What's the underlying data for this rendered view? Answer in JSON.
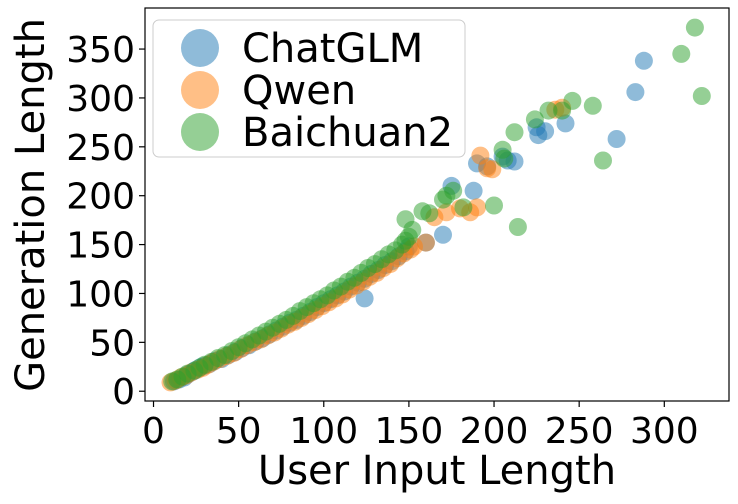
{
  "chart_data": {
    "type": "scatter",
    "xlabel": "User Input Length",
    "ylabel": "Generation Length",
    "xlim": [
      -5,
      338
    ],
    "ylim": [
      -10,
      392
    ],
    "xticks": [
      0,
      50,
      100,
      150,
      200,
      250,
      300
    ],
    "yticks": [
      0,
      50,
      100,
      150,
      200,
      250,
      300,
      350
    ],
    "legend_position": "top-left",
    "grid": false,
    "series": [
      {
        "name": "ChatGLM",
        "color": "#1f77b4",
        "points": [
          [
            12,
            10
          ],
          [
            15,
            12
          ],
          [
            18,
            14
          ],
          [
            20,
            17
          ],
          [
            23,
            20
          ],
          [
            25,
            22
          ],
          [
            28,
            25
          ],
          [
            30,
            26
          ],
          [
            33,
            28
          ],
          [
            36,
            31
          ],
          [
            40,
            33
          ],
          [
            44,
            37
          ],
          [
            48,
            40
          ],
          [
            52,
            44
          ],
          [
            56,
            47
          ],
          [
            60,
            51
          ],
          [
            64,
            54
          ],
          [
            68,
            58
          ],
          [
            72,
            62
          ],
          [
            76,
            66
          ],
          [
            80,
            70
          ],
          [
            84,
            73
          ],
          [
            88,
            77
          ],
          [
            92,
            81
          ],
          [
            96,
            86
          ],
          [
            100,
            90
          ],
          [
            104,
            94
          ],
          [
            108,
            98
          ],
          [
            112,
            102
          ],
          [
            116,
            107
          ],
          [
            120,
            111
          ],
          [
            124,
            115
          ],
          [
            128,
            120
          ],
          [
            132,
            124
          ],
          [
            136,
            129
          ],
          [
            140,
            133
          ],
          [
            144,
            138
          ],
          [
            148,
            143
          ],
          [
            124,
            95
          ],
          [
            150,
            148
          ],
          [
            160,
            152
          ],
          [
            170,
            160
          ],
          [
            175,
            210
          ],
          [
            188,
            205
          ],
          [
            190,
            233
          ],
          [
            196,
            230
          ],
          [
            205,
            240
          ],
          [
            208,
            236
          ],
          [
            212,
            235
          ],
          [
            225,
            270
          ],
          [
            226,
            262
          ],
          [
            230,
            266
          ],
          [
            242,
            274
          ],
          [
            272,
            258
          ],
          [
            283,
            306
          ],
          [
            288,
            338
          ]
        ]
      },
      {
        "name": "Qwen",
        "color": "#ff7f0e",
        "points": [
          [
            10,
            9
          ],
          [
            13,
            11
          ],
          [
            16,
            14
          ],
          [
            19,
            16
          ],
          [
            22,
            19
          ],
          [
            26,
            22
          ],
          [
            29,
            24
          ],
          [
            32,
            27
          ],
          [
            35,
            30
          ],
          [
            39,
            33
          ],
          [
            43,
            36
          ],
          [
            47,
            39
          ],
          [
            51,
            43
          ],
          [
            55,
            47
          ],
          [
            59,
            50
          ],
          [
            63,
            53
          ],
          [
            67,
            57
          ],
          [
            71,
            60
          ],
          [
            75,
            64
          ],
          [
            79,
            68
          ],
          [
            83,
            71
          ],
          [
            87,
            75
          ],
          [
            91,
            79
          ],
          [
            95,
            83
          ],
          [
            99,
            87
          ],
          [
            103,
            91
          ],
          [
            107,
            95
          ],
          [
            111,
            99
          ],
          [
            115,
            104
          ],
          [
            119,
            108
          ],
          [
            123,
            112
          ],
          [
            127,
            117
          ],
          [
            131,
            121
          ],
          [
            135,
            126
          ],
          [
            139,
            130
          ],
          [
            143,
            136
          ],
          [
            147,
            141
          ],
          [
            151,
            145
          ],
          [
            153,
            148
          ],
          [
            160,
            152
          ],
          [
            165,
            178
          ],
          [
            172,
            183
          ],
          [
            180,
            187
          ],
          [
            186,
            183
          ],
          [
            190,
            188
          ],
          [
            192,
            241
          ],
          [
            196,
            228
          ],
          [
            199,
            227
          ],
          [
            236,
            288
          ],
          [
            240,
            290
          ]
        ]
      },
      {
        "name": "Baichuan2",
        "color": "#2ca02c",
        "points": [
          [
            11,
            10
          ],
          [
            14,
            12
          ],
          [
            17,
            15
          ],
          [
            20,
            18
          ],
          [
            24,
            21
          ],
          [
            27,
            24
          ],
          [
            30,
            27
          ],
          [
            34,
            30
          ],
          [
            38,
            34
          ],
          [
            42,
            37
          ],
          [
            46,
            41
          ],
          [
            50,
            45
          ],
          [
            54,
            49
          ],
          [
            58,
            53
          ],
          [
            62,
            57
          ],
          [
            66,
            61
          ],
          [
            70,
            65
          ],
          [
            74,
            69
          ],
          [
            78,
            73
          ],
          [
            82,
            77
          ],
          [
            86,
            82
          ],
          [
            90,
            86
          ],
          [
            94,
            90
          ],
          [
            98,
            94
          ],
          [
            102,
            98
          ],
          [
            106,
            103
          ],
          [
            110,
            107
          ],
          [
            114,
            112
          ],
          [
            118,
            116
          ],
          [
            122,
            121
          ],
          [
            126,
            126
          ],
          [
            130,
            130
          ],
          [
            134,
            135
          ],
          [
            138,
            140
          ],
          [
            142,
            144
          ],
          [
            146,
            150
          ],
          [
            148,
            154
          ],
          [
            150,
            158
          ],
          [
            152,
            165
          ],
          [
            148,
            176
          ],
          [
            158,
            184
          ],
          [
            162,
            182
          ],
          [
            170,
            196
          ],
          [
            172,
            200
          ],
          [
            176,
            205
          ],
          [
            182,
            188
          ],
          [
            200,
            190
          ],
          [
            205,
            247
          ],
          [
            206,
            238
          ],
          [
            212,
            265
          ],
          [
            214,
            168
          ],
          [
            224,
            278
          ],
          [
            232,
            287
          ],
          [
            240,
            287
          ],
          [
            246,
            297
          ],
          [
            258,
            292
          ],
          [
            264,
            236
          ],
          [
            310,
            345
          ],
          [
            318,
            372
          ],
          [
            322,
            302
          ]
        ]
      }
    ]
  }
}
